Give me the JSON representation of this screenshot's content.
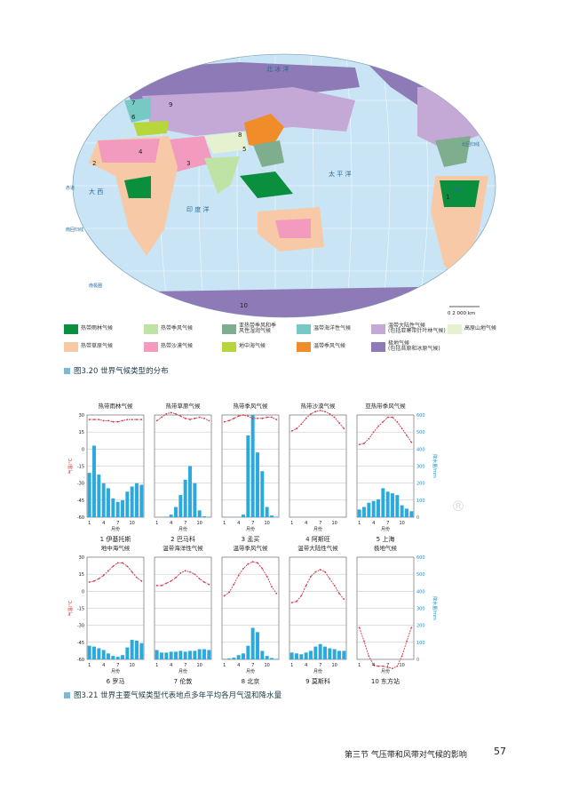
{
  "map": {
    "lat_labels": [
      "0°",
      "30°",
      "30°",
      "60°",
      "60°"
    ],
    "lon_labels": [
      "30°",
      "W 0° E",
      "30°",
      "60°",
      "90°",
      "120°",
      "150°",
      "E 180° W",
      "150°",
      "120°",
      "90°",
      "60°",
      "30°"
    ],
    "place_labels": {
      "arctic_ocean": "北  冰  洋",
      "pacific_left": "太  平",
      "indian_ocean": "印  度  洋",
      "pacific_right": "太  平  洋",
      "atlantic": "大  西",
      "atlantic2": "洋",
      "tropic_n": "北回归线",
      "tropic_s": "南回归线",
      "equator_l": "赤道",
      "equator_r": "赤道",
      "antarctic": "南极圈",
      "arctic": "北极圈",
      "west": "西",
      "pacific_sub": "洋"
    },
    "stations": [
      "1",
      "2",
      "3",
      "4",
      "5",
      "6",
      "7",
      "8",
      "9",
      "10"
    ],
    "scale": "0      2 000 km"
  },
  "legend": [
    {
      "color": "#0a8f3f",
      "label": "热带雨林气候"
    },
    {
      "color": "#bfe3a5",
      "label": "热带季风气候"
    },
    {
      "color": "#7fae8e",
      "label": "亚热带季风和季\n风性湿润气候"
    },
    {
      "color": "#76c9c4",
      "label": "温带海洋性气候"
    },
    {
      "color": "#c4a8d6",
      "label": "温带大陆性气候\n(包括亚寒带针叶林气候)"
    },
    {
      "color": "#e6f2cf",
      "label": "高原山地气候"
    },
    {
      "color": "#f7c9a6",
      "label": "热带草原气候"
    },
    {
      "color": "#f29bbf",
      "label": "热带沙漠气候"
    },
    {
      "color": "#b6d63c",
      "label": "地中海气候"
    },
    {
      "color": "#f08c2a",
      "label": "温带季风气候"
    },
    {
      "color": "#8d7ab6",
      "label": "极地气候\n(包括苔原和冰原气候)"
    }
  ],
  "figure1_caption": "图3.20  世界气候类型的分布",
  "figure2_caption": "图3.21  世界主要气候类型代表地点多年平均各月气温和降水量",
  "axis": {
    "temp_label": "气温/°C",
    "precip_label": "降水量/mm",
    "month_label": "月份",
    "temp_ticks": [
      "30",
      "15",
      "0",
      "-15",
      "-30",
      "-45",
      "-60"
    ],
    "precip_ticks": [
      "600",
      "500",
      "400",
      "300",
      "200",
      "100",
      "0"
    ],
    "month_ticks": [
      "1",
      "4",
      "7",
      "10"
    ]
  },
  "chart_data": [
    {
      "type": "bar+line",
      "title": "热带雨林气候",
      "station": "1  伊基托斯",
      "temp": [
        26,
        26,
        26,
        25,
        25,
        24,
        24,
        25,
        26,
        26,
        26,
        26
      ],
      "precip": [
        260,
        420,
        250,
        200,
        170,
        110,
        90,
        100,
        150,
        180,
        200,
        190
      ]
    },
    {
      "type": "bar+line",
      "title": "热带草原气候",
      "station": "2  巴马科",
      "temp": [
        25,
        28,
        31,
        32,
        31,
        29,
        27,
        26,
        27,
        28,
        27,
        25
      ],
      "precip": [
        0,
        0,
        3,
        15,
        60,
        130,
        220,
        300,
        200,
        40,
        5,
        0
      ]
    },
    {
      "type": "bar+line",
      "title": "热带季风气候",
      "station": "3  孟买",
      "temp": [
        24,
        25,
        27,
        29,
        30,
        29,
        27,
        27,
        27,
        28,
        28,
        26
      ],
      "precip": [
        2,
        1,
        0,
        2,
        15,
        480,
        620,
        380,
        270,
        60,
        10,
        2
      ]
    },
    {
      "type": "bar+line",
      "title": "热带沙漠气候",
      "station": "4  阿斯旺",
      "temp": [
        16,
        18,
        22,
        27,
        31,
        33,
        34,
        33,
        31,
        28,
        23,
        18
      ],
      "precip": [
        0,
        0,
        0,
        0,
        1,
        0,
        0,
        0,
        0,
        1,
        0,
        0
      ]
    },
    {
      "type": "bar+line",
      "title": "亚热带季风气候",
      "station": "5  上海",
      "temp": [
        4,
        5,
        9,
        15,
        20,
        24,
        28,
        28,
        24,
        18,
        12,
        6
      ],
      "precip": [
        45,
        60,
        85,
        95,
        105,
        170,
        150,
        140,
        130,
        70,
        50,
        35
      ]
    },
    {
      "type": "bar+line",
      "title": "地中海气候",
      "station": "6  罗马",
      "temp": [
        8,
        9,
        11,
        14,
        18,
        22,
        25,
        25,
        22,
        17,
        12,
        9
      ],
      "precip": [
        80,
        75,
        65,
        55,
        35,
        20,
        15,
        25,
        70,
        115,
        110,
        95
      ]
    },
    {
      "type": "bar+line",
      "title": "温带海洋性气候",
      "station": "7  伦敦",
      "temp": [
        5,
        5,
        7,
        9,
        12,
        16,
        18,
        17,
        15,
        11,
        8,
        6
      ],
      "precip": [
        55,
        40,
        40,
        45,
        45,
        50,
        45,
        50,
        50,
        60,
        60,
        55
      ]
    },
    {
      "type": "bar+line",
      "title": "温带季风气候",
      "station": "8  北京",
      "temp": [
        -4,
        -1,
        6,
        14,
        20,
        24,
        26,
        25,
        20,
        13,
        4,
        -2
      ],
      "precip": [
        3,
        5,
        10,
        25,
        35,
        80,
        185,
        160,
        50,
        20,
        8,
        3
      ]
    },
    {
      "type": "bar+line",
      "title": "温带大陆性气候",
      "station": "9  莫斯科",
      "temp": [
        -10,
        -9,
        -4,
        5,
        13,
        17,
        19,
        17,
        11,
        5,
        -2,
        -7
      ],
      "precip": [
        40,
        35,
        30,
        40,
        50,
        75,
        90,
        75,
        65,
        60,
        50,
        50
      ]
    },
    {
      "type": "bar+line",
      "title": "极地气候",
      "station": "10  东方站",
      "temp": [
        -32,
        -44,
        -57,
        -65,
        -66,
        -66,
        -67,
        -68,
        -66,
        -57,
        -44,
        -32
      ],
      "precip": [
        0,
        0,
        1,
        0,
        1,
        0,
        0,
        0,
        0,
        0,
        0,
        0
      ]
    }
  ],
  "footer": {
    "section": "第三节   气压带和风带对气候的影响",
    "page": "57"
  },
  "watermark": "®"
}
